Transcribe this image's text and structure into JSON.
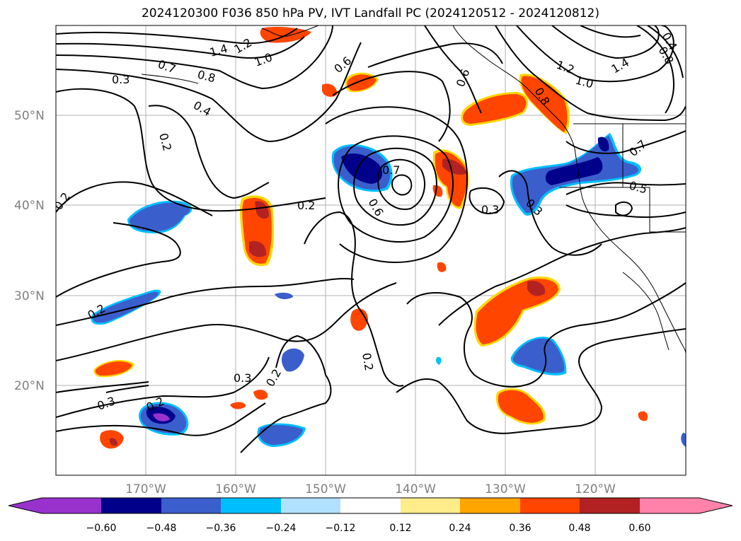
{
  "title": "2024120300 F036 850 hPa PV, IVT Landfall PC (2024120512 - 2024120812)",
  "map": {
    "lat_labels": [
      "50°N",
      "40°N",
      "30°N",
      "20°N"
    ],
    "lon_labels": [
      "170°W",
      "160°W",
      "150°W",
      "140°W",
      "130°W",
      "120°W"
    ],
    "contour_labels": [
      "1.4",
      "1.2",
      "1.0",
      "0.7",
      "0.8",
      "0.3",
      "0.4",
      "0.2",
      "0.2",
      "0.6",
      "0.7",
      "0.6",
      "0.2",
      "0.6",
      "0.8",
      "0.3",
      "0.3",
      "0.7",
      "0.5",
      "1.2",
      "1.0",
      "1.4",
      "0.4",
      "0.8",
      "0.2",
      "0.3",
      "0.2",
      "0.3",
      "0.2",
      "0.2"
    ]
  },
  "colorbar": {
    "colors": [
      "#9932cc",
      "#8a2be2",
      "#00008b",
      "#3a5fcd",
      "#00bfff",
      "#b0e2ff",
      "#ffffff",
      "#ffec8b",
      "#ffa500",
      "#ff4500",
      "#b22222",
      "#ff82ab",
      "#ff82ab"
    ],
    "tick_labels": [
      "−0.60",
      "−0.48",
      "−0.36",
      "−0.24",
      "−0.12",
      "0.12",
      "0.24",
      "0.36",
      "0.48",
      "0.60"
    ]
  }
}
